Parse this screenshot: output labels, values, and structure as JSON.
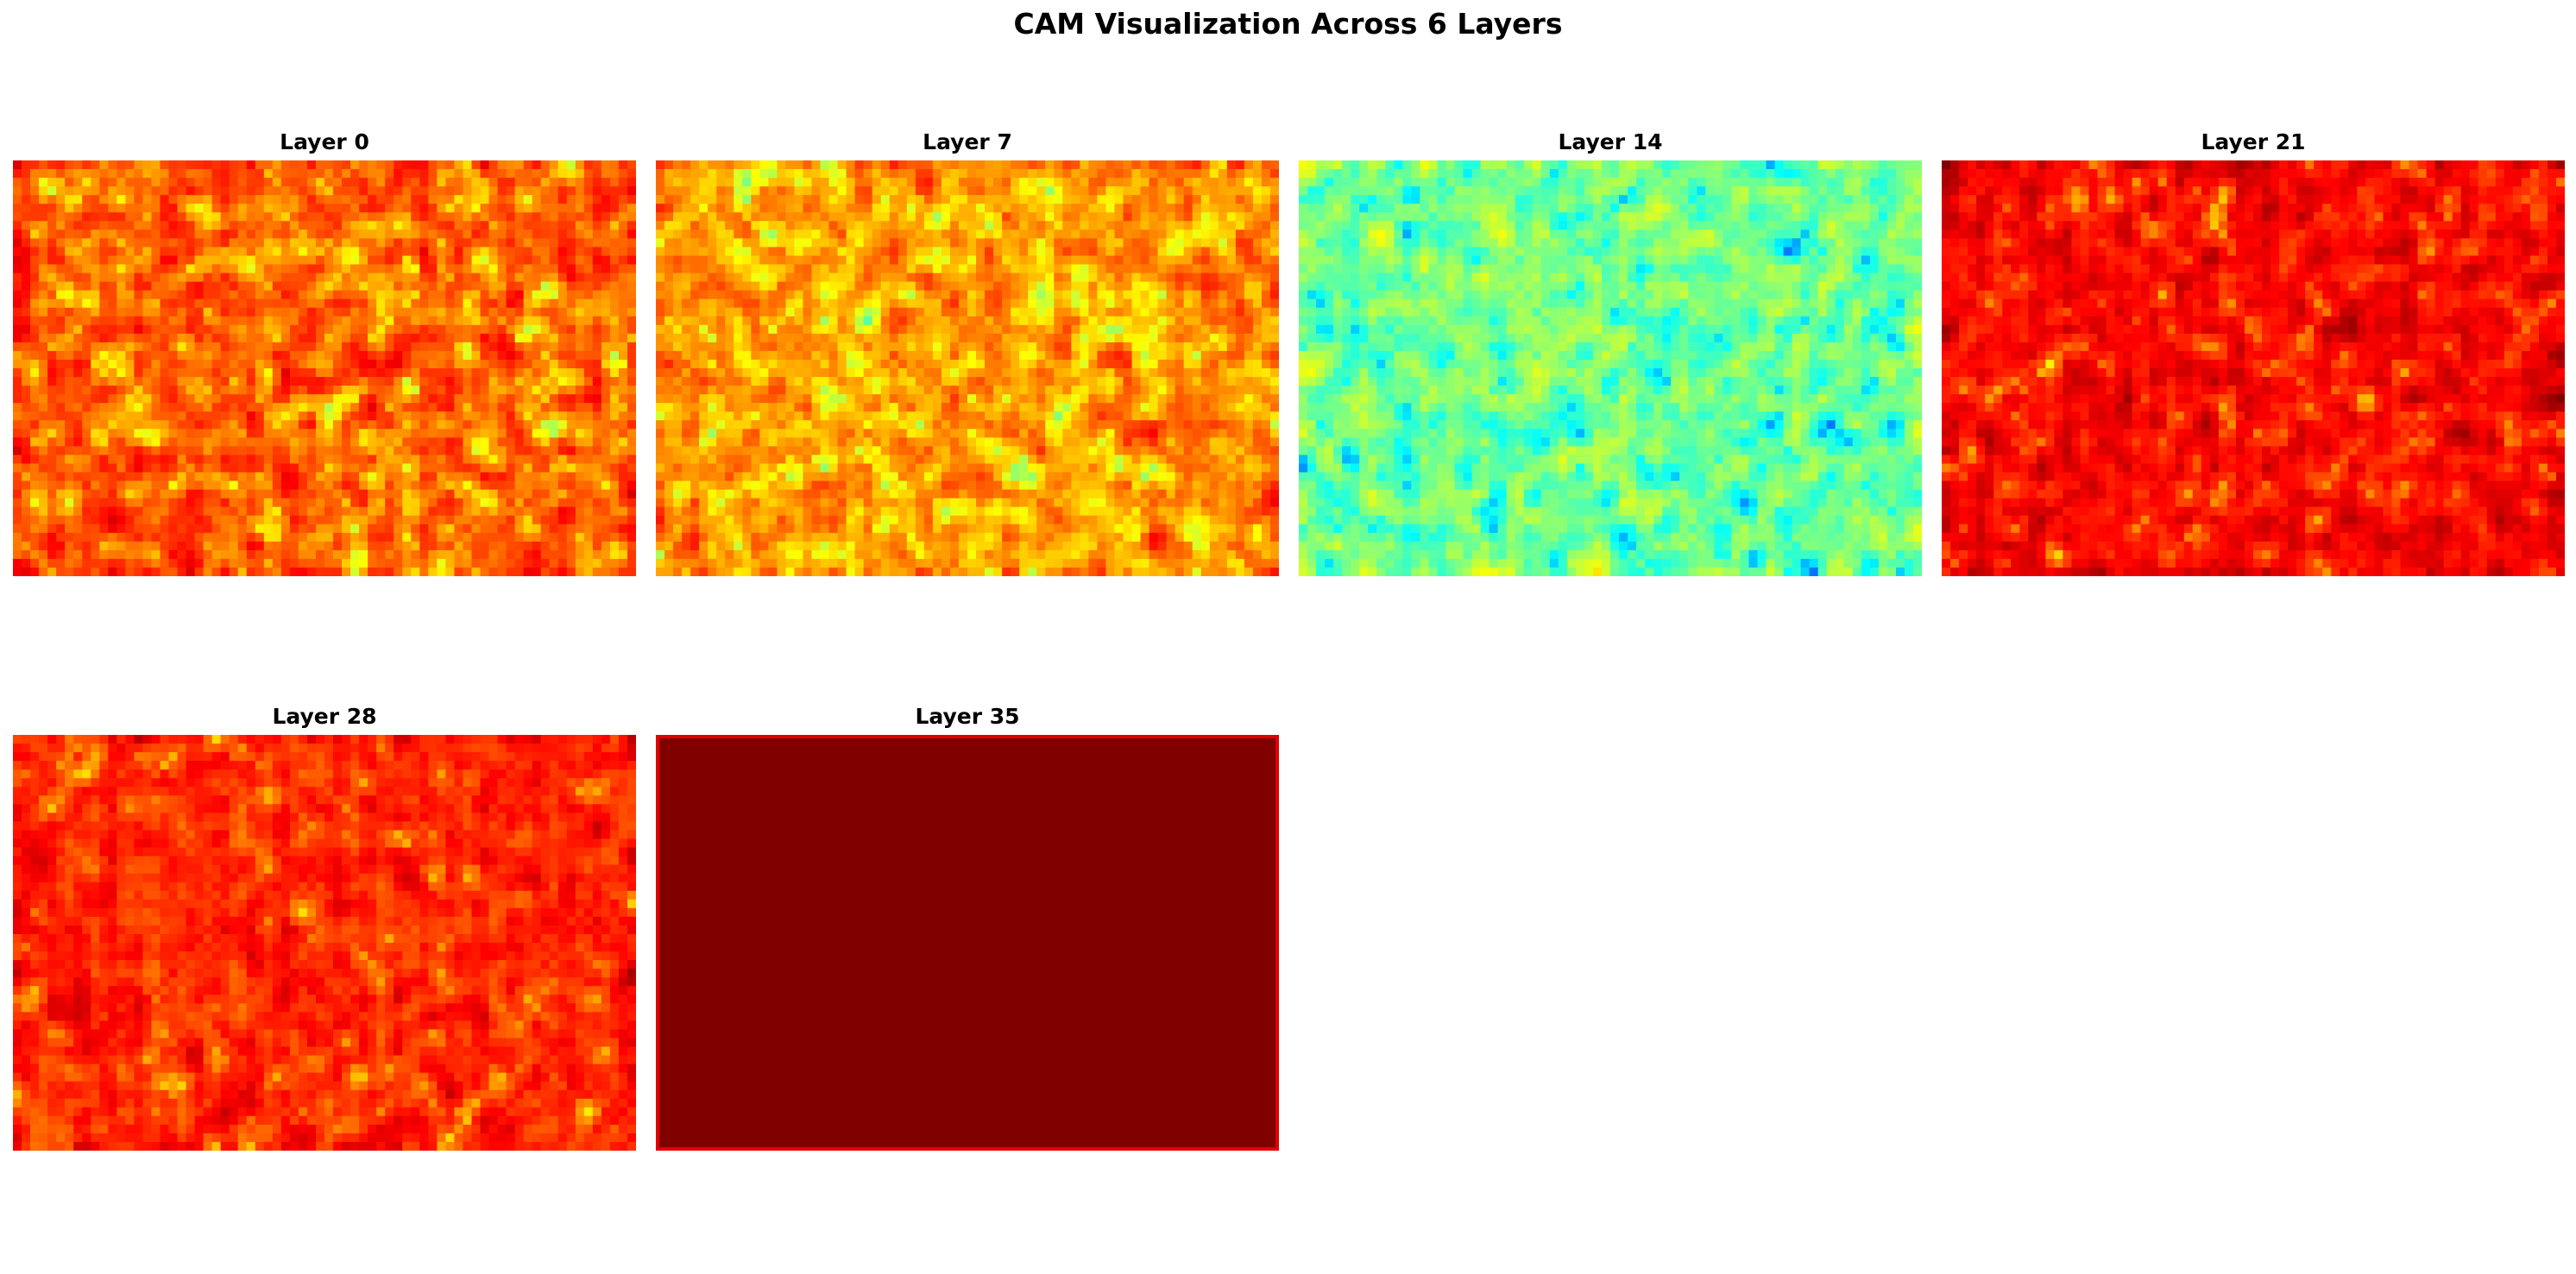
{
  "figure": {
    "title": "CAM Visualization Across 6 Layers"
  },
  "chart_data": [
    {
      "type": "heatmap",
      "title": "Layer 0",
      "colormap": "jet",
      "grid": false,
      "axes": "off",
      "level": 0.8,
      "spread": 0.16,
      "low_spots": 0.3,
      "seed": 11,
      "cols": 72,
      "rows": 48,
      "border": false
    },
    {
      "type": "heatmap",
      "title": "Layer 7",
      "colormap": "jet",
      "grid": false,
      "axes": "off",
      "level": 0.74,
      "spread": 0.18,
      "low_spots": 0.35,
      "seed": 23,
      "cols": 72,
      "rows": 48,
      "border": false
    },
    {
      "type": "heatmap",
      "title": "Layer 14",
      "colormap": "jet",
      "grid": false,
      "axes": "off",
      "level": 0.5,
      "spread": 0.17,
      "low_spots": 0.25,
      "seed": 37,
      "cols": 72,
      "rows": 48,
      "border": false
    },
    {
      "type": "heatmap",
      "title": "Layer 21",
      "colormap": "jet",
      "grid": false,
      "axes": "off",
      "level": 0.88,
      "spread": 0.12,
      "low_spots": 0.22,
      "seed": 41,
      "cols": 72,
      "rows": 48,
      "border": false
    },
    {
      "type": "heatmap",
      "title": "Layer 28",
      "colormap": "jet",
      "grid": false,
      "axes": "off",
      "level": 0.84,
      "spread": 0.13,
      "low_spots": 0.12,
      "seed": 53,
      "cols": 72,
      "rows": 48,
      "border": false
    },
    {
      "type": "heatmap",
      "title": "Layer 35",
      "colormap": "jet",
      "grid": false,
      "axes": "off",
      "level": 1.0,
      "spread": 0.0,
      "low_spots": 0.0,
      "seed": 0,
      "cols": 1,
      "rows": 1,
      "uniform_color": "#800000",
      "border": true,
      "border_color": "#e00000"
    }
  ]
}
